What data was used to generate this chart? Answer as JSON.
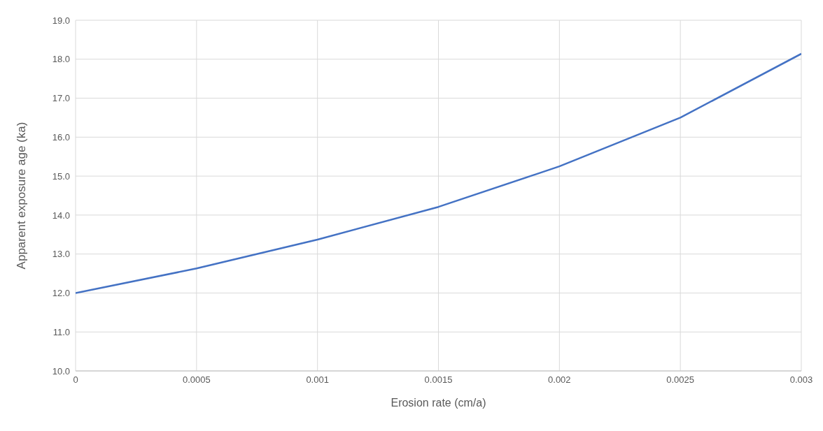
{
  "chart_data": {
    "type": "line",
    "xlabel": "Erosion rate (cm/a)",
    "ylabel": "Apparent exposure age (ka)",
    "x": [
      0,
      0.0005,
      0.001,
      0.0015,
      0.002,
      0.0025,
      0.003
    ],
    "series": [
      {
        "color": "#4472c4",
        "values": [
          12.0,
          12.63,
          13.37,
          14.21,
          15.25,
          16.5,
          18.14
        ]
      }
    ],
    "xlim": [
      0,
      0.003
    ],
    "xticks": [
      0,
      0.0005,
      0.001,
      0.0015,
      0.002,
      0.0025,
      0.003
    ],
    "ylim": [
      10,
      19
    ],
    "yticks": [
      {
        "value": 10,
        "label": "10.0"
      },
      {
        "value": 11,
        "label": "11.0"
      },
      {
        "value": 12,
        "label": "12.0"
      },
      {
        "value": 13,
        "label": "13.0"
      },
      {
        "value": 14,
        "label": "14.0"
      },
      {
        "value": 15,
        "label": "15.0"
      },
      {
        "value": 16,
        "label": "16.0"
      },
      {
        "value": 17,
        "label": "17.0"
      },
      {
        "value": 18,
        "label": "18.0"
      },
      {
        "value": 19,
        "label": "19.0"
      }
    ],
    "grid": true,
    "legend": false,
    "marker": "none",
    "line_style": "solid"
  }
}
